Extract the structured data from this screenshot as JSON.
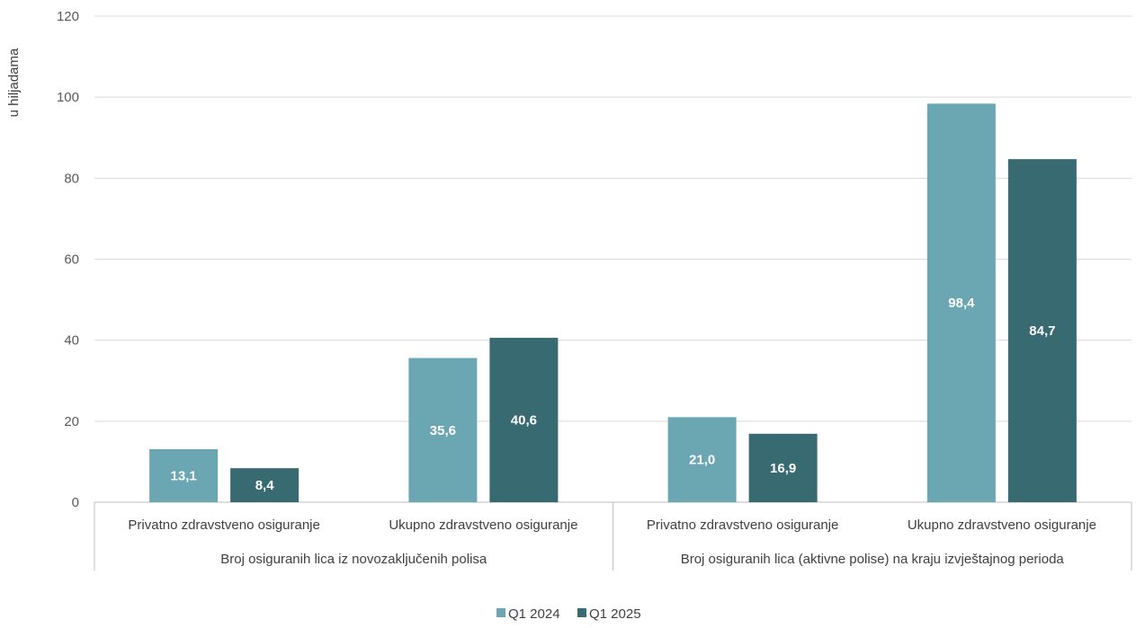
{
  "chart_data": {
    "type": "bar",
    "ylabel": "u hiljadama",
    "ylim": [
      0,
      120
    ],
    "yticks": [
      0,
      20,
      40,
      60,
      80,
      100,
      120
    ],
    "grid": true,
    "legend_position": "bottom",
    "groups": [
      {
        "label": "Broj osiguranih lica iz novozaključenih polisa",
        "categories": [
          "Privatno zdravstveno osiguranje",
          "Ukupno zdravstveno osiguranje"
        ]
      },
      {
        "label": "Broj osiguranih lica (aktivne polise) na kraju izvještajnog perioda",
        "categories": [
          "Privatno zdravstveno osiguranje",
          "Ukupno zdravstveno osiguranje"
        ]
      }
    ],
    "series": [
      {
        "name": "Q1 2024",
        "color": "#6aa7b3",
        "values": [
          13.1,
          35.6,
          21.0,
          98.4
        ],
        "labels": [
          "13,1",
          "35,6",
          "21,0",
          "98,4"
        ]
      },
      {
        "name": "Q1 2025",
        "color": "#386a72",
        "values": [
          8.4,
          40.6,
          16.9,
          84.7
        ],
        "labels": [
          "8,4",
          "40,6",
          "16,9",
          "84,7"
        ]
      }
    ]
  }
}
